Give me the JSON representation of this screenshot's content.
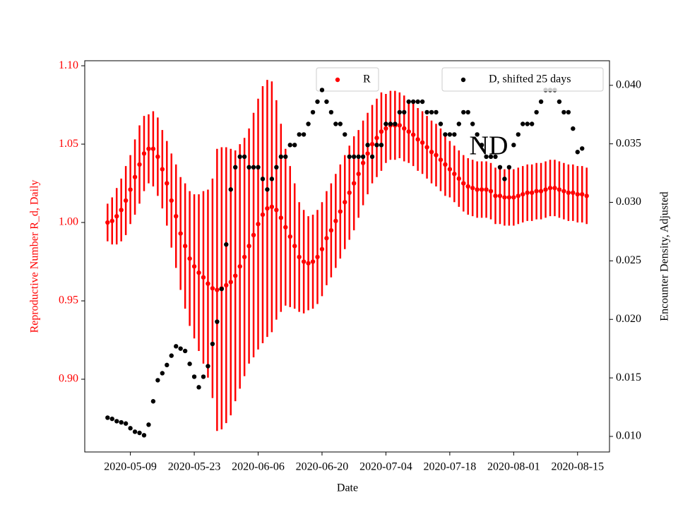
{
  "chart_data": {
    "type": "errorbar_dual",
    "annotation": "ND",
    "xlabel": "Date",
    "ylabel": "Reproductive Number R_d, Daily",
    "y2label": "Encounter Density, Adjusted",
    "ylabel_color": "#ff0000",
    "x": [
      "2020-05-04",
      "2020-05-05",
      "2020-05-06",
      "2020-05-07",
      "2020-05-08",
      "2020-05-09",
      "2020-05-10",
      "2020-05-11",
      "2020-05-12",
      "2020-05-13",
      "2020-05-14",
      "2020-05-15",
      "2020-05-16",
      "2020-05-17",
      "2020-05-18",
      "2020-05-19",
      "2020-05-20",
      "2020-05-21",
      "2020-05-22",
      "2020-05-23",
      "2020-05-24",
      "2020-05-25",
      "2020-05-26",
      "2020-05-27",
      "2020-05-28",
      "2020-05-29",
      "2020-05-30",
      "2020-05-31",
      "2020-06-01",
      "2020-06-02",
      "2020-06-03",
      "2020-06-04",
      "2020-06-05",
      "2020-06-06",
      "2020-06-07",
      "2020-06-08",
      "2020-06-09",
      "2020-06-10",
      "2020-06-11",
      "2020-06-12",
      "2020-06-13",
      "2020-06-14",
      "2020-06-15",
      "2020-06-16",
      "2020-06-17",
      "2020-06-18",
      "2020-06-19",
      "2020-06-20",
      "2020-06-21",
      "2020-06-22",
      "2020-06-23",
      "2020-06-24",
      "2020-06-25",
      "2020-06-26",
      "2020-06-27",
      "2020-06-28",
      "2020-06-29",
      "2020-06-30",
      "2020-07-01",
      "2020-07-02",
      "2020-07-03",
      "2020-07-04",
      "2020-07-05",
      "2020-07-06",
      "2020-07-07",
      "2020-07-08",
      "2020-07-09",
      "2020-07-10",
      "2020-07-11",
      "2020-07-12",
      "2020-07-13",
      "2020-07-14",
      "2020-07-15",
      "2020-07-16",
      "2020-07-17",
      "2020-07-18",
      "2020-07-19",
      "2020-07-20",
      "2020-07-21",
      "2020-07-22",
      "2020-07-23",
      "2020-07-24",
      "2020-07-25",
      "2020-07-26",
      "2020-07-27",
      "2020-07-28",
      "2020-07-29",
      "2020-07-30",
      "2020-07-31",
      "2020-08-01",
      "2020-08-02",
      "2020-08-03",
      "2020-08-04",
      "2020-08-05",
      "2020-08-06",
      "2020-08-07",
      "2020-08-08",
      "2020-08-09",
      "2020-08-10",
      "2020-08-11",
      "2020-08-12",
      "2020-08-13",
      "2020-08-14",
      "2020-08-15",
      "2020-08-16",
      "2020-08-17"
    ],
    "series": [
      {
        "name": "R",
        "color": "#ff0000",
        "legend_loc": "upper center",
        "values": [
          1.0,
          1.001,
          1.004,
          1.008,
          1.014,
          1.021,
          1.029,
          1.037,
          1.044,
          1.047,
          1.047,
          1.042,
          1.034,
          1.025,
          1.014,
          1.004,
          0.993,
          0.985,
          0.977,
          0.972,
          0.968,
          0.965,
          0.961,
          0.958,
          0.957,
          0.958,
          0.96,
          0.962,
          0.966,
          0.972,
          0.978,
          0.985,
          0.992,
          0.999,
          1.005,
          1.009,
          1.01,
          1.008,
          1.003,
          0.997,
          0.991,
          0.985,
          0.978,
          0.975,
          0.974,
          0.975,
          0.978,
          0.983,
          0.99,
          0.995,
          1.001,
          1.007,
          1.013,
          1.019,
          1.025,
          1.031,
          1.038,
          1.044,
          1.05,
          1.054,
          1.058,
          1.06,
          1.062,
          1.062,
          1.062,
          1.06,
          1.058,
          1.056,
          1.053,
          1.051,
          1.048,
          1.045,
          1.043,
          1.04,
          1.037,
          1.034,
          1.031,
          1.028,
          1.025,
          1.023,
          1.022,
          1.021,
          1.021,
          1.021,
          1.02,
          1.017,
          1.017,
          1.016,
          1.016,
          1.016,
          1.017,
          1.018,
          1.019,
          1.019,
          1.02,
          1.02,
          1.021,
          1.022,
          1.022,
          1.021,
          1.02,
          1.019,
          1.019,
          1.018,
          1.018,
          1.017
        ],
        "errors": [
          0.012,
          0.015,
          0.018,
          0.02,
          0.022,
          0.022,
          0.024,
          0.025,
          0.024,
          0.022,
          0.024,
          0.025,
          0.025,
          0.027,
          0.03,
          0.033,
          0.036,
          0.04,
          0.043,
          0.046,
          0.05,
          0.055,
          0.06,
          0.07,
          0.09,
          0.09,
          0.088,
          0.085,
          0.08,
          0.078,
          0.076,
          0.075,
          0.078,
          0.08,
          0.082,
          0.082,
          0.08,
          0.07,
          0.06,
          0.05,
          0.045,
          0.04,
          0.035,
          0.033,
          0.03,
          0.03,
          0.03,
          0.03,
          0.03,
          0.03,
          0.03,
          0.03,
          0.03,
          0.03,
          0.03,
          0.028,
          0.027,
          0.026,
          0.025,
          0.025,
          0.025,
          0.022,
          0.022,
          0.022,
          0.021,
          0.021,
          0.02,
          0.02,
          0.02,
          0.02,
          0.02,
          0.02,
          0.02,
          0.02,
          0.02,
          0.018,
          0.018,
          0.018,
          0.018,
          0.018,
          0.018,
          0.018,
          0.018,
          0.018,
          0.018,
          0.018,
          0.018,
          0.018,
          0.018,
          0.018,
          0.018,
          0.018,
          0.018,
          0.018,
          0.018,
          0.018,
          0.018,
          0.018,
          0.018,
          0.018,
          0.018,
          0.018,
          0.018,
          0.018,
          0.018,
          0.018
        ]
      },
      {
        "name": "D, shifted 25 days",
        "color": "#000000",
        "axis": "y2",
        "legend_loc": "upper right",
        "values": [
          0.0116,
          0.0115,
          0.0113,
          0.0112,
          0.0111,
          0.0107,
          0.0104,
          0.0103,
          0.0101,
          0.011,
          0.013,
          0.0148,
          0.0154,
          0.0161,
          0.0169,
          0.0177,
          0.0175,
          0.0173,
          0.0162,
          0.0151,
          0.0142,
          0.0151,
          0.016,
          0.0179,
          0.0198,
          0.0226,
          0.0264,
          0.0311,
          0.033,
          0.0339,
          0.0339,
          0.033,
          0.033,
          0.033,
          0.032,
          0.0311,
          0.032,
          0.033,
          0.0339,
          0.0339,
          0.0349,
          0.0349,
          0.0358,
          0.0358,
          0.0367,
          0.0377,
          0.0386,
          0.0396,
          0.0386,
          0.0377,
          0.0367,
          0.0367,
          0.0358,
          0.0339,
          0.0339,
          0.0339,
          0.0339,
          0.0349,
          0.0339,
          0.0349,
          0.0349,
          0.0367,
          0.0367,
          0.0367,
          0.0377,
          0.0377,
          0.0386,
          0.0386,
          0.0386,
          0.0386,
          0.0377,
          0.0377,
          0.0377,
          0.0367,
          0.0358,
          0.0358,
          0.0358,
          0.0367,
          0.0377,
          0.0377,
          0.0367,
          0.0358,
          0.0349,
          0.0339,
          0.0339,
          0.0339,
          0.033,
          0.032,
          0.033,
          0.0349,
          0.0358,
          0.0367,
          0.0367,
          0.0367,
          0.0377,
          0.0386,
          0.0396,
          0.0396,
          0.0396,
          0.0386,
          0.0377,
          0.0377,
          0.0363,
          0.0343,
          0.0346,
          null
        ]
      }
    ],
    "xlim": [
      "2020-04-29",
      "2020-08-22"
    ],
    "xticks": [
      "2020-05-09",
      "2020-05-23",
      "2020-06-06",
      "2020-06-20",
      "2020-07-04",
      "2020-07-18",
      "2020-08-01",
      "2020-08-15"
    ],
    "ylim": [
      0.8536,
      1.1032
    ],
    "yticks": [
      {
        "value": 0.9,
        "label": "0.90"
      },
      {
        "value": 0.95,
        "label": "0.95"
      },
      {
        "value": 1.0,
        "label": "1.00"
      },
      {
        "value": 1.05,
        "label": "1.05"
      },
      {
        "value": 1.1,
        "label": "1.10"
      }
    ],
    "y2lim": [
      0.00867,
      0.0421
    ],
    "y2ticks": [
      {
        "value": 0.01,
        "label": "0.010"
      },
      {
        "value": 0.015,
        "label": "0.015"
      },
      {
        "value": 0.02,
        "label": "0.020"
      },
      {
        "value": 0.025,
        "label": "0.025"
      },
      {
        "value": 0.03,
        "label": "0.030"
      },
      {
        "value": 0.035,
        "label": "0.035"
      },
      {
        "value": 0.04,
        "label": "0.040"
      }
    ]
  }
}
